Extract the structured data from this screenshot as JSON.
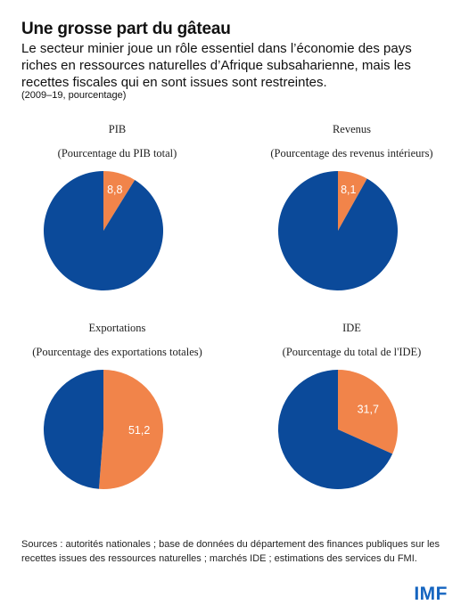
{
  "header": {
    "title": "Une grosse part du gâteau",
    "subtitle": "Le secteur minier joue un rôle essentiel dans l’économie des pays riches en ressources naturelles d’Afrique subsaharienne, mais les recettes fiscales qui en sont issues sont restreintes.",
    "unit": "(2009–19, pourcentage)"
  },
  "colors": {
    "main": "#0b4a9a",
    "highlight": "#f1844a"
  },
  "chart_data": [
    {
      "type": "pie",
      "title": "PIB",
      "subtitle": "(Pourcentage du PIB total)",
      "slices": [
        {
          "label": "8,8",
          "value": 8.8,
          "highlighted": true
        },
        {
          "label": "",
          "value": 91.2,
          "highlighted": false
        }
      ]
    },
    {
      "type": "pie",
      "title": "Revenus",
      "subtitle": "(Pourcentage des revenus intérieurs)",
      "slices": [
        {
          "label": "8,1",
          "value": 8.1,
          "highlighted": true
        },
        {
          "label": "",
          "value": 91.9,
          "highlighted": false
        }
      ]
    },
    {
      "type": "pie",
      "title": "Exportations",
      "subtitle": "(Pourcentage des exportations totales)",
      "slices": [
        {
          "label": "51,2",
          "value": 51.2,
          "highlighted": true
        },
        {
          "label": "",
          "value": 48.8,
          "highlighted": false
        }
      ]
    },
    {
      "type": "pie",
      "title": "IDE",
      "subtitle": "(Pourcentage du total de l'IDE)",
      "slices": [
        {
          "label": "31,7",
          "value": 31.7,
          "highlighted": true
        },
        {
          "label": "",
          "value": 68.3,
          "highlighted": false
        }
      ]
    }
  ],
  "footer": {
    "sources": "Sources : autorités nationales ; base de données du département des finances publiques sur les recettes issues des ressources naturelles ; marchés IDE ; estimations des services du FMI.",
    "logo": "IMF"
  }
}
